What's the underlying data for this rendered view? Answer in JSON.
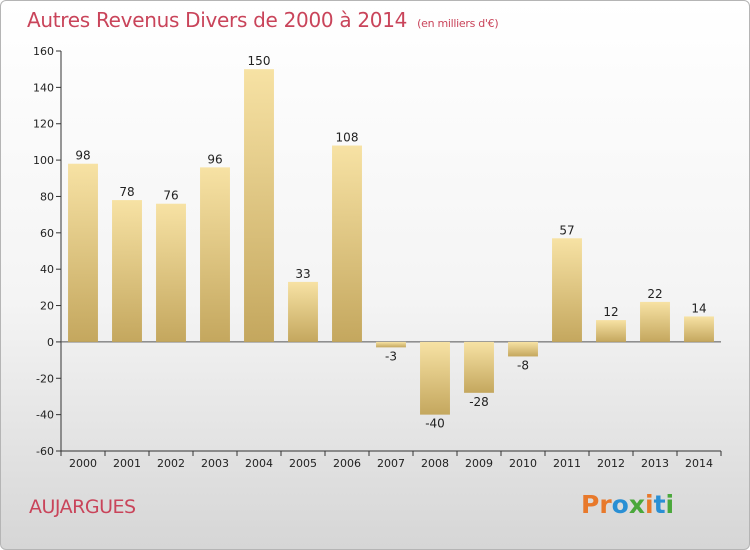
{
  "header": {
    "title": "Autres Revenus Divers de 2000 à 2014",
    "subtitle": "(en milliers d'€)"
  },
  "footer": {
    "place": "AUJARGUES",
    "logo_text": "Proxiti"
  },
  "colors": {
    "title": "#c9445a",
    "bar_top": "#f7e2a4",
    "bar_bottom": "#c4a75e",
    "logo_letters": [
      "#e8792b",
      "#e8792b",
      "#2a8fd4",
      "#4aa83b",
      "#e8792b",
      "#2a8fd4",
      "#4aa83b"
    ]
  },
  "chart_data": {
    "type": "bar",
    "categories": [
      "2000",
      "2001",
      "2002",
      "2003",
      "2004",
      "2005",
      "2006",
      "2007",
      "2008",
      "2009",
      "2010",
      "2011",
      "2012",
      "2013",
      "2014"
    ],
    "values": [
      98,
      78,
      76,
      96,
      150,
      33,
      108,
      -3,
      -40,
      -28,
      -8,
      57,
      12,
      22,
      14
    ],
    "title": "Autres Revenus Divers de 2000 à 2014",
    "subtitle": "(en milliers d'€)",
    "ylim": [
      -60,
      160
    ],
    "yticks": [
      -60,
      -40,
      -20,
      0,
      20,
      40,
      60,
      80,
      100,
      120,
      140,
      160
    ],
    "grid": false
  }
}
